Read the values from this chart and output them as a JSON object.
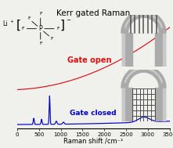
{
  "title": "Kerr gated Raman",
  "xlabel": "Raman shift /cm⁻¹",
  "xmin": 0,
  "xmax": 3500,
  "bg_color": "#f0f0ec",
  "red_color": "#dd1111",
  "blue_color": "#0000cc",
  "gate_open_label": "Gate open",
  "gate_closed_label": "Gate closed",
  "title_fontsize": 7.5,
  "axis_fontsize": 6,
  "label_fontsize": 7,
  "tick_fontsize": 5
}
